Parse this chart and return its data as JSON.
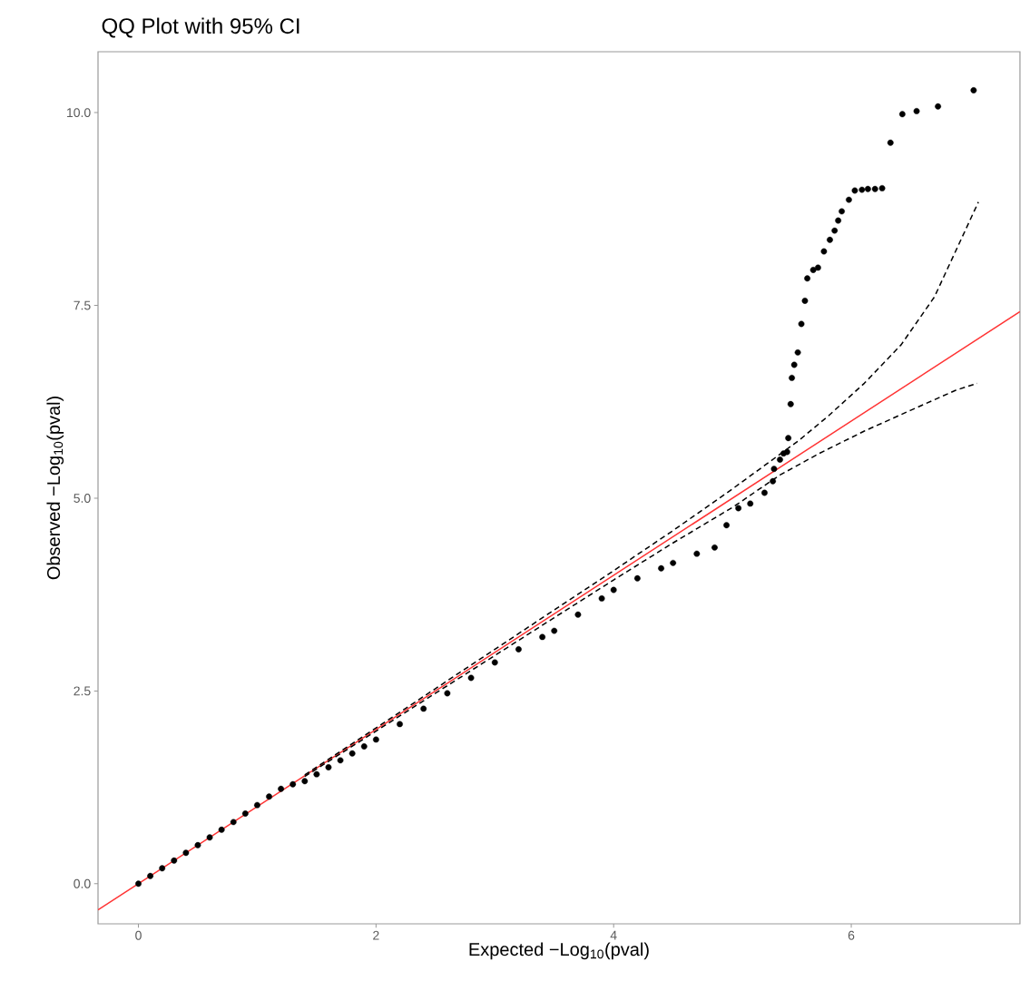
{
  "chart_data": {
    "type": "scatter",
    "title": "QQ Plot with 95% CI",
    "xlabel": "Expected −Log$_{10}$(pval)",
    "ylabel": "Observed −Log$_{10}$(pval)",
    "xlim": [
      -0.34,
      7.42
    ],
    "ylim": [
      -0.52,
      10.79
    ],
    "xticks": [
      0,
      2,
      4,
      6
    ],
    "yticks": [
      {
        "value": 0,
        "label": "0.0"
      },
      {
        "value": 2.5,
        "label": "2.5"
      },
      {
        "value": 5,
        "label": "5.0"
      },
      {
        "value": 7.5,
        "label": "7.5"
      },
      {
        "value": 10,
        "label": "10.0"
      }
    ],
    "grid": false,
    "series": [
      {
        "marker": "circle",
        "color": "#000000",
        "x": [
          0,
          0.1,
          0.2,
          0.3,
          0.4,
          0.5,
          0.6,
          0.7,
          0.8,
          0.9,
          1.0,
          1.1,
          1.2,
          1.3,
          1.4,
          1.5,
          1.6,
          1.7,
          1.8,
          1.9,
          2.0,
          2.2,
          2.4,
          2.6,
          2.8,
          3.0,
          3.2,
          3.4,
          3.5,
          3.7,
          3.9,
          4.0,
          4.2,
          4.4,
          4.5,
          4.7,
          4.85,
          4.95,
          5.05,
          5.15,
          5.27,
          5.34,
          5.35,
          5.4,
          5.43,
          5.46,
          5.47,
          5.49,
          5.5,
          5.52,
          5.55,
          5.58,
          5.61,
          5.63,
          5.68,
          5.72,
          5.77,
          5.82,
          5.86,
          5.89,
          5.92,
          5.98,
          6.03,
          6.09,
          6.14,
          6.2,
          6.26,
          6.33,
          6.43,
          6.55,
          6.73,
          7.03
        ],
        "values": [
          0,
          0.1,
          0.2,
          0.3,
          0.4,
          0.5,
          0.6,
          0.7,
          0.8,
          0.91,
          1.02,
          1.13,
          1.23,
          1.29,
          1.33,
          1.42,
          1.51,
          1.6,
          1.69,
          1.78,
          1.87,
          2.07,
          2.27,
          2.47,
          2.67,
          2.87,
          3.04,
          3.2,
          3.28,
          3.49,
          3.7,
          3.81,
          3.96,
          4.09,
          4.16,
          4.28,
          4.36,
          4.65,
          4.87,
          4.93,
          5.07,
          5.22,
          5.38,
          5.5,
          5.58,
          5.6,
          5.78,
          6.22,
          6.56,
          6.73,
          6.89,
          7.26,
          7.56,
          7.85,
          7.96,
          7.99,
          8.2,
          8.35,
          8.47,
          8.6,
          8.72,
          8.87,
          8.99,
          9.0,
          9.01,
          9.01,
          9.02,
          9.61,
          9.98,
          10.02,
          10.08,
          10.29
        ]
      },
      {
        "type": "line",
        "marker": "none",
        "color": "#ff3333",
        "line_style": "solid",
        "x": [
          -0.34,
          7.42
        ],
        "values": [
          -0.34,
          7.42
        ]
      },
      {
        "type": "line",
        "marker": "none",
        "color": "#000000",
        "line_style": "dashed",
        "x": [
          1.4,
          2.5,
          3.5,
          4.0,
          4.5,
          5.0,
          5.56,
          5.81,
          6.11,
          6.42,
          6.7,
          7.07
        ],
        "values": [
          1.41,
          2.53,
          3.55,
          4.06,
          4.58,
          5.12,
          5.75,
          6.07,
          6.49,
          6.99,
          7.61,
          8.84
        ]
      },
      {
        "type": "line",
        "marker": "none",
        "color": "#000000",
        "line_style": "dashed",
        "x": [
          1.4,
          2.5,
          3.5,
          4.0,
          4.5,
          5.0,
          5.4,
          5.73,
          6.11,
          6.5,
          6.88,
          7.06
        ],
        "values": [
          1.39,
          2.47,
          3.45,
          3.94,
          4.42,
          4.88,
          5.3,
          5.58,
          5.87,
          6.14,
          6.4,
          6.49
        ]
      }
    ]
  }
}
